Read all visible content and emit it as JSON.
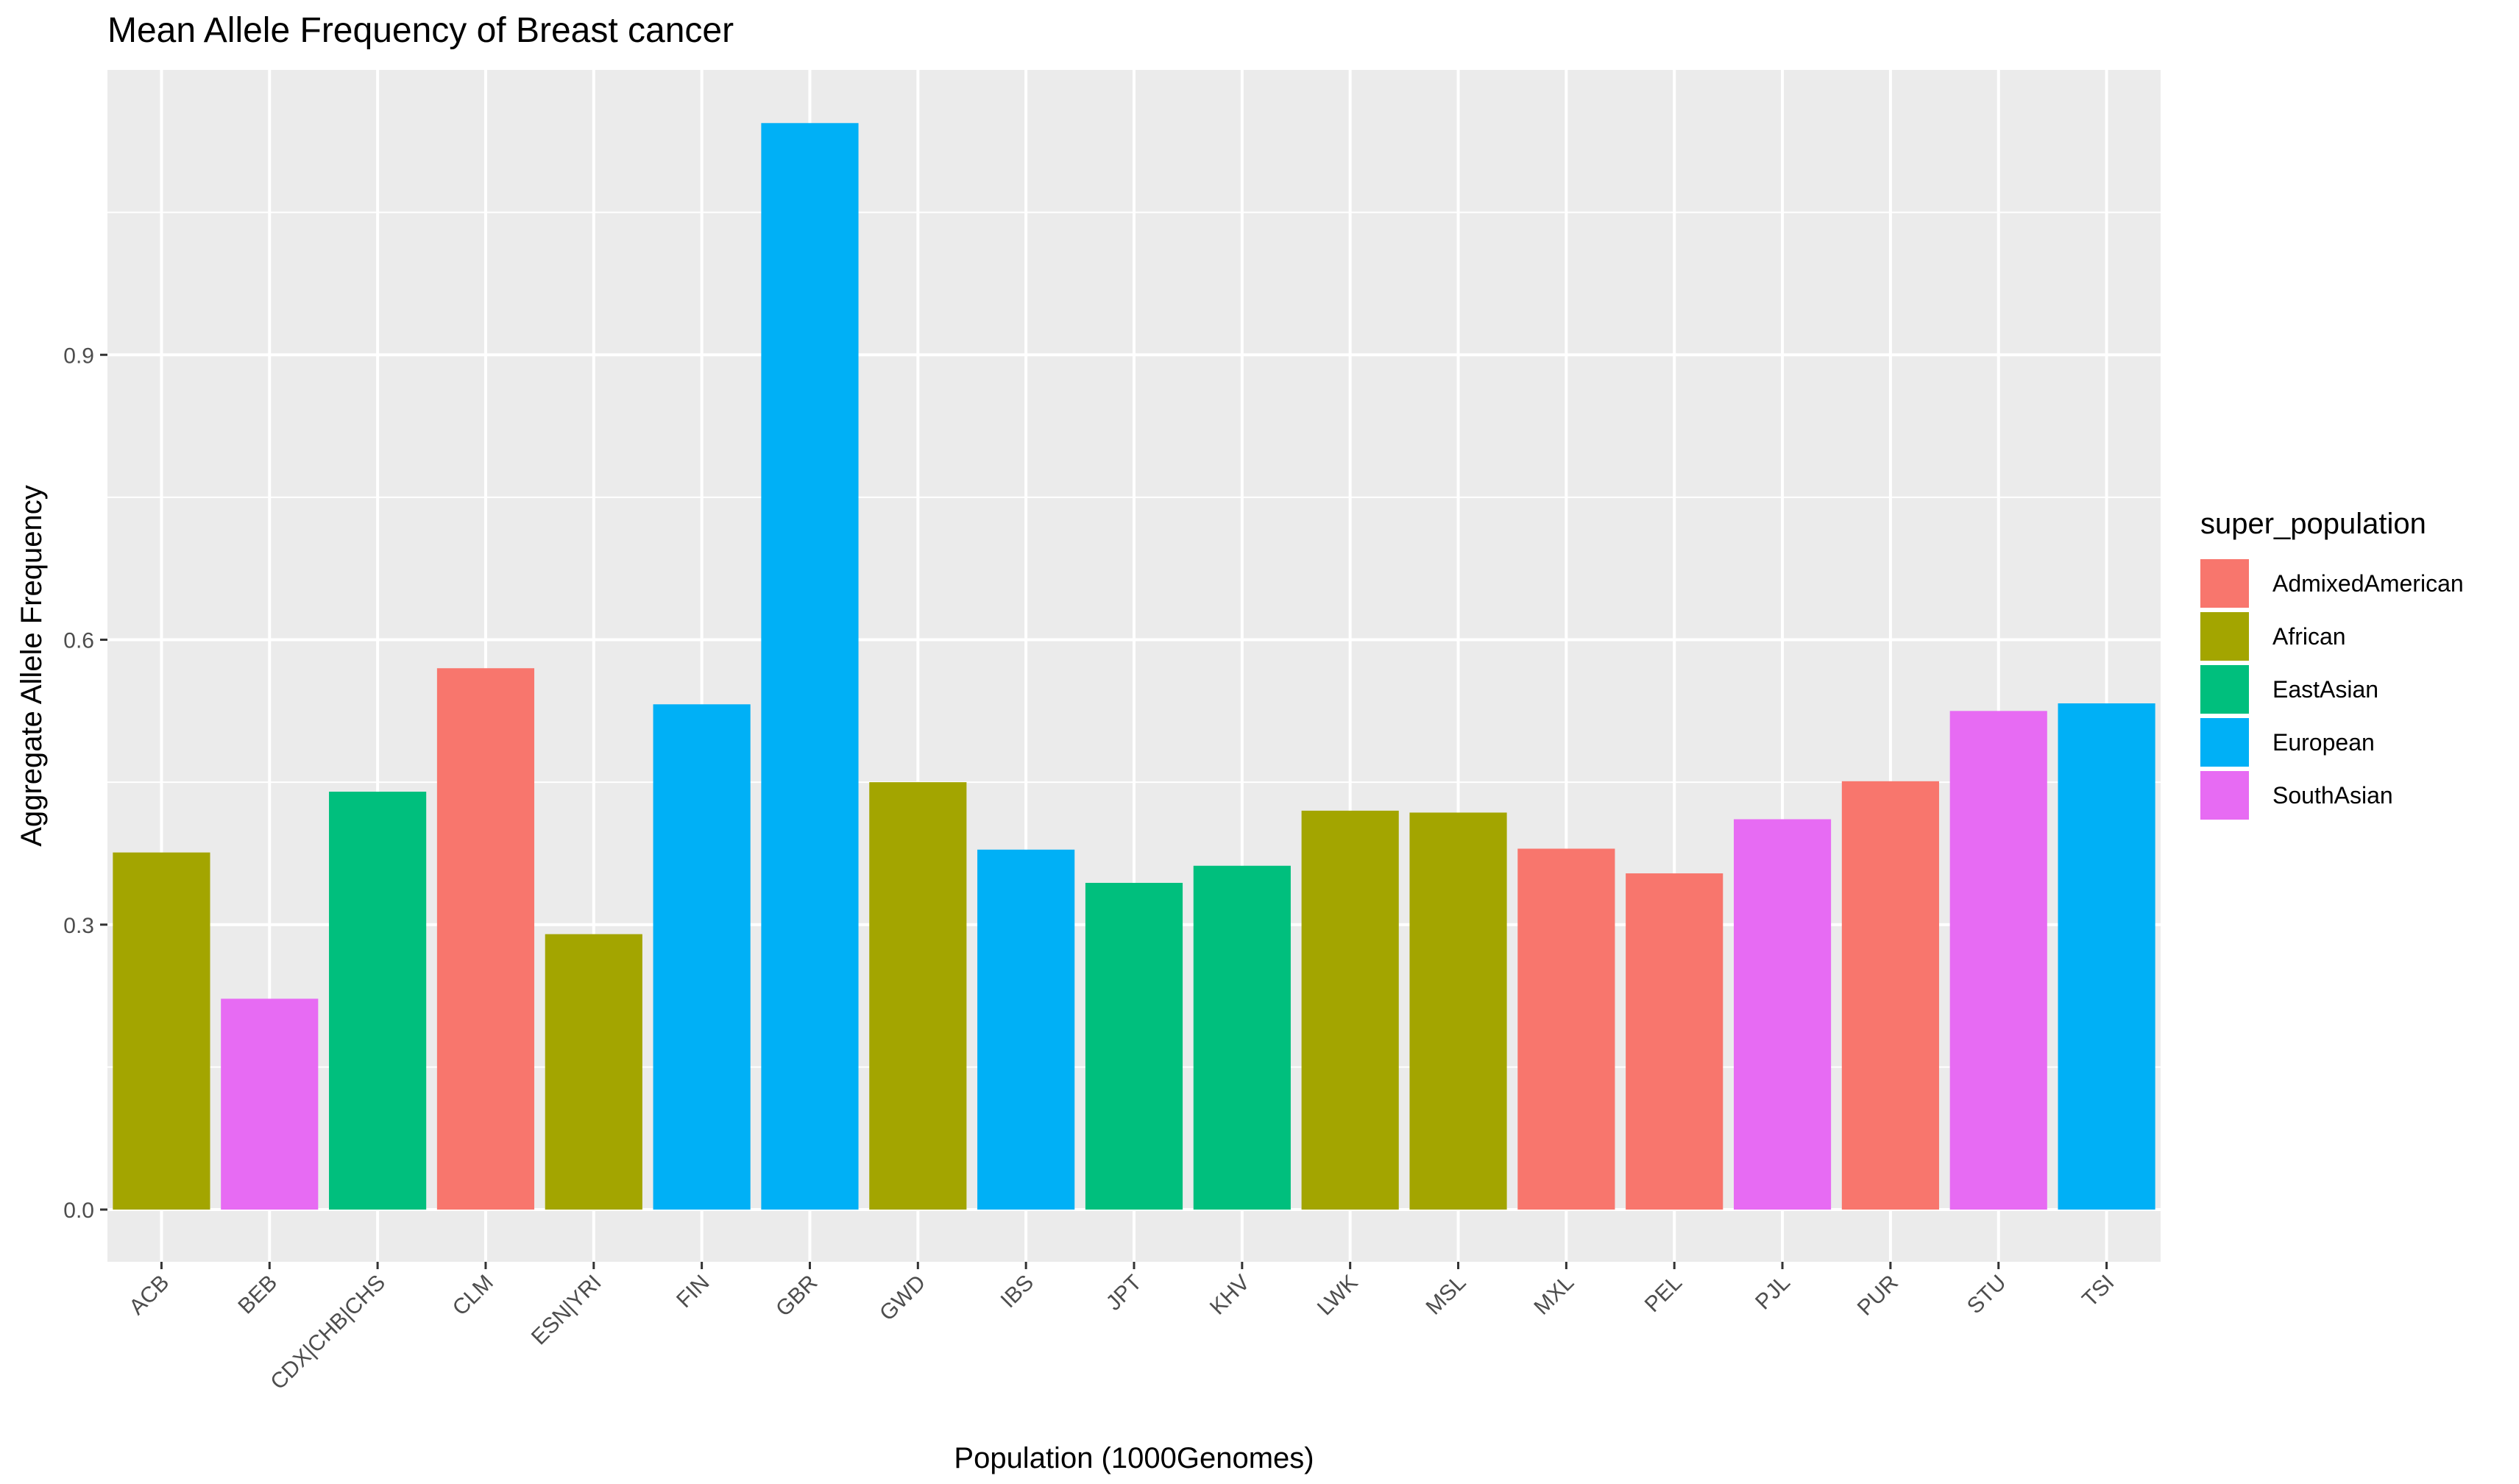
{
  "chart_data": {
    "type": "bar",
    "title": "Mean Allele Frequency of Breast cancer",
    "xlabel": "Population (1000Genomes)",
    "ylabel": "Aggregate Allele Frequency",
    "categories": [
      "ACB",
      "BEB",
      "CDX|CHB|CHS",
      "CLM",
      "ESN|YRI",
      "FIN",
      "GBR",
      "GWD",
      "IBS",
      "JPT",
      "KHV",
      "LWK",
      "MSL",
      "MXL",
      "PEL",
      "PJL",
      "PUR",
      "STU",
      "TSI"
    ],
    "values": [
      0.376,
      0.222,
      0.44,
      0.57,
      0.29,
      0.532,
      1.144,
      0.45,
      0.379,
      0.344,
      0.362,
      0.42,
      0.418,
      0.38,
      0.354,
      0.411,
      0.451,
      0.525,
      0.533
    ],
    "groups": [
      "African",
      "SouthAsian",
      "EastAsian",
      "AdmixedAmerican",
      "African",
      "European",
      "European",
      "African",
      "European",
      "EastAsian",
      "EastAsian",
      "African",
      "African",
      "AdmixedAmerican",
      "AdmixedAmerican",
      "SouthAsian",
      "AdmixedAmerican",
      "SouthAsian",
      "European"
    ],
    "yticks": [
      "0.0",
      "0.3",
      "0.6",
      "0.9"
    ],
    "ylim": [
      -0.055,
      1.2
    ],
    "grid": true,
    "legend": {
      "title": "super_population",
      "position": "right",
      "items": [
        {
          "label": "AdmixedAmerican",
          "color": "#F8766D"
        },
        {
          "label": "African",
          "color": "#A3A500"
        },
        {
          "label": "EastAsian",
          "color": "#00BF7D"
        },
        {
          "label": "European",
          "color": "#00B0F6"
        },
        {
          "label": "SouthAsian",
          "color": "#E76BF3"
        }
      ]
    },
    "colors": {
      "panel": "#EBEBEB",
      "grid": "#FFFFFF",
      "axis_text": "#4D4D4D"
    }
  }
}
